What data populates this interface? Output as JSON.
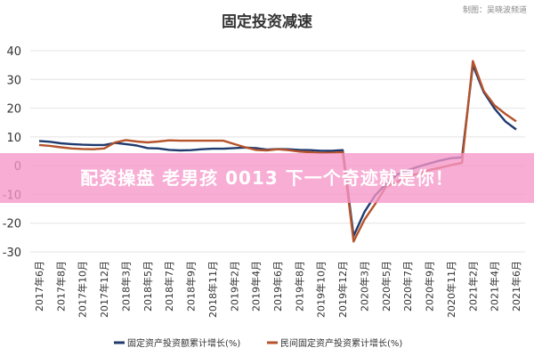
{
  "credit": "制图：吴晓波频道",
  "banner": "配资操盘 老男孩 0013 下一个奇迹就是你！",
  "chart_data": {
    "type": "line",
    "title": "固定投资减速",
    "categories": [
      "2017年6月",
      "2017年7月",
      "2017年8月",
      "2017年9月",
      "2017年10月",
      "2017年11月",
      "2017年12月",
      "2018年2月",
      "2018年3月",
      "2018年4月",
      "2018年5月",
      "2018年6月",
      "2018年7月",
      "2018年8月",
      "2018年9月",
      "2018年10月",
      "2018年11月",
      "2018年12月",
      "2019年2月",
      "2019年3月",
      "2019年4月",
      "2019年5月",
      "2019年6月",
      "2019年7月",
      "2019年8月",
      "2019年9月",
      "2019年10月",
      "2019年11月",
      "2019年12月",
      "2020年2月",
      "2020年3月",
      "2020年4月",
      "2020年5月",
      "2020年6月",
      "2020年7月",
      "2020年8月",
      "2020年9月",
      "2020年10月",
      "2020年11月",
      "2020年12月",
      "2021年2月",
      "2021年3月",
      "2021年4月",
      "2021年5月",
      "2021年6月"
    ],
    "tick_labels": [
      "2017年6月",
      "2017年8月",
      "2017年10月",
      "2017年12月",
      "2018年3月",
      "2018年5月",
      "2018年7月",
      "2018年9月",
      "2018年11月",
      "2019年2月",
      "2019年4月",
      "2019年6月",
      "2019年8月",
      "2019年10月",
      "2019年12月",
      "2020年3月",
      "2020年5月",
      "2020年7月",
      "2020年9月",
      "2020年11月",
      "2021年2月",
      "2021年4月",
      "2021年6月"
    ],
    "ylim": [
      -30,
      40
    ],
    "yticks": [
      40,
      30,
      20,
      10,
      0,
      -10,
      -20,
      -30
    ],
    "grid": true,
    "legend_position": "bottom",
    "series": [
      {
        "name": "固定资产投资额累计增长(%)",
        "color": "#1f3a6e",
        "values": [
          8.6,
          8.3,
          7.8,
          7.5,
          7.3,
          7.2,
          7.2,
          7.9,
          7.5,
          7.0,
          6.1,
          6.0,
          5.5,
          5.3,
          5.4,
          5.7,
          5.9,
          5.9,
          6.1,
          6.3,
          6.1,
          5.6,
          5.8,
          5.7,
          5.5,
          5.4,
          5.2,
          5.2,
          5.4,
          -24.5,
          -16.1,
          -10.3,
          -6.3,
          -3.1,
          -1.6,
          -0.3,
          0.8,
          1.8,
          2.6,
          2.9,
          35.0,
          25.6,
          19.9,
          15.4,
          12.6
        ]
      },
      {
        "name": "民间固定资产投资累计增长(%)",
        "color": "#b5532b",
        "values": [
          7.2,
          6.9,
          6.4,
          6.0,
          5.8,
          5.7,
          6.0,
          8.1,
          8.9,
          8.4,
          8.1,
          8.4,
          8.8,
          8.7,
          8.7,
          8.7,
          8.7,
          8.7,
          7.5,
          6.4,
          5.5,
          5.3,
          5.7,
          5.4,
          4.9,
          4.7,
          4.4,
          4.5,
          4.7,
          -26.4,
          -18.8,
          -13.3,
          -7.3,
          -5.7,
          -3.7,
          -2.8,
          -1.5,
          -0.7,
          0.2,
          1.0,
          36.4,
          26.0,
          21.0,
          18.0,
          15.4
        ]
      }
    ]
  }
}
